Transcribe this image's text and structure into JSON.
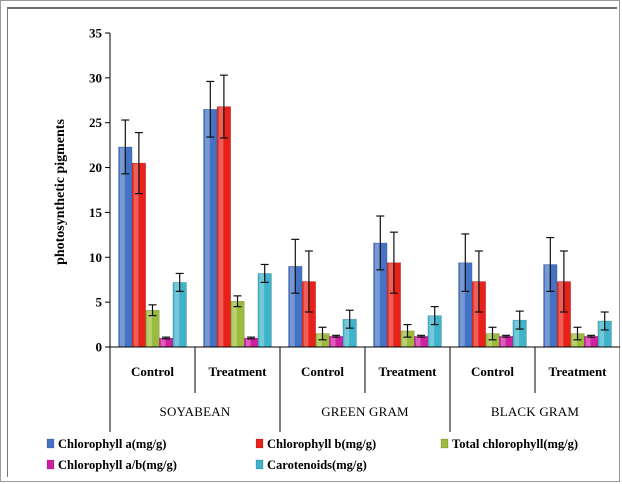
{
  "chart_data": {
    "type": "bar",
    "ylabel": "photosynthetic pigments",
    "ylim": [
      0,
      35
    ],
    "yticks": [
      "0",
      "5",
      "10",
      "15",
      "20",
      "25",
      "30",
      "35"
    ],
    "categories": [
      "Control",
      "Treatment",
      "Control",
      "Treatment",
      "Control",
      "Treatment"
    ],
    "groups": [
      "SOYABEAN",
      "GREEN GRAM",
      "BLACK GRAM"
    ],
    "legend_position": "bottom",
    "error_bars": true,
    "series": [
      {
        "name": "Chlorophyll a(mg/g)",
        "color": "#4472c4",
        "values": [
          22.3,
          26.5,
          9.0,
          11.6,
          9.4,
          9.2
        ],
        "errors": [
          3.0,
          3.1,
          3.0,
          3.0,
          3.2,
          3.0
        ]
      },
      {
        "name": "Chlorophyll b(mg/g)",
        "color": "#e8221a",
        "values": [
          20.5,
          26.8,
          7.3,
          9.4,
          7.3,
          7.3
        ],
        "errors": [
          3.4,
          3.5,
          3.4,
          3.4,
          3.4,
          3.4
        ]
      },
      {
        "name": "Total chlorophyll(mg/g)",
        "color": "#9bbb3c",
        "values": [
          4.1,
          5.1,
          1.5,
          1.8,
          1.5,
          1.5
        ],
        "errors": [
          0.6,
          0.6,
          0.7,
          0.7,
          0.7,
          0.7
        ]
      },
      {
        "name": "Chlorophyll a/b(mg/g)",
        "color": "#d01fa0",
        "values": [
          1.0,
          1.0,
          1.2,
          1.2,
          1.2,
          1.2
        ],
        "errors": [
          0.1,
          0.1,
          0.1,
          0.1,
          0.1,
          0.1
        ]
      },
      {
        "name": "Carotenoids(mg/g)",
        "color": "#3fb3c9",
        "values": [
          7.2,
          8.2,
          3.1,
          3.5,
          3.0,
          2.9
        ],
        "errors": [
          1.0,
          1.0,
          1.0,
          1.0,
          1.0,
          1.0
        ]
      }
    ]
  }
}
